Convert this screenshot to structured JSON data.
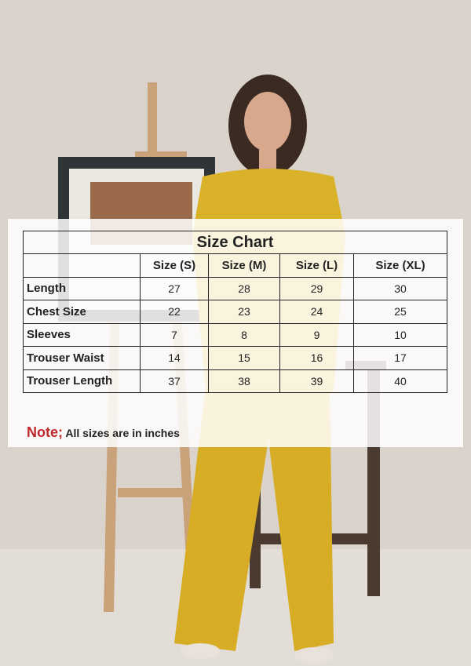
{
  "size_chart": {
    "title": "Size Chart",
    "columns": [
      "Size (S)",
      "Size (M)",
      "Size (L)",
      "Size (XL)"
    ],
    "rows": [
      {
        "label": "Length",
        "values": [
          "27",
          "28",
          "29",
          "30"
        ]
      },
      {
        "label": "Chest Size",
        "values": [
          "22",
          "23",
          "24",
          "25"
        ]
      },
      {
        "label": "Sleeves",
        "values": [
          "7",
          "8",
          "9",
          "10"
        ]
      },
      {
        "label": "Trouser Waist",
        "values": [
          "14",
          "15",
          "16",
          "17"
        ]
      },
      {
        "label": "Trouser Length",
        "values": [
          "37",
          "38",
          "39",
          "40"
        ]
      }
    ]
  },
  "note": {
    "label": "Note;",
    "text": "All sizes are in inches"
  },
  "colors": {
    "background": "#d9d3cc",
    "outfit": "#d9b22a",
    "note_accent": "#c0282d"
  }
}
